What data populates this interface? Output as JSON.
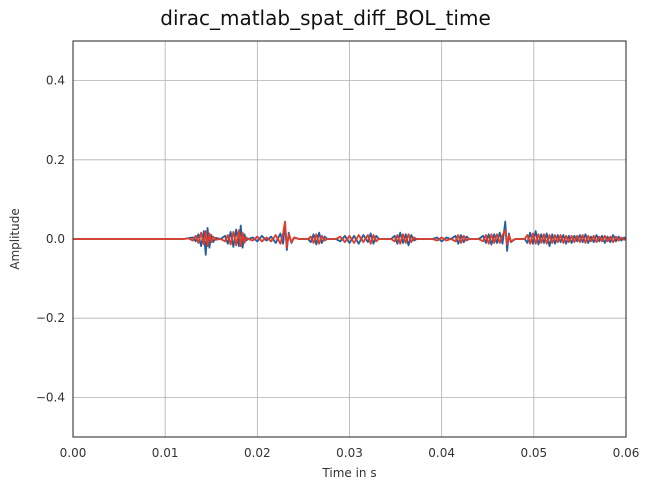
{
  "chart_data": {
    "type": "line",
    "title": "dirac_matlab_spat_diff_BOL_time",
    "xlabel": "Time in s",
    "ylabel": "Amplitude",
    "xlim": [
      0,
      0.06
    ],
    "ylim": [
      -0.5,
      0.5
    ],
    "xticks": [
      0,
      0.01,
      0.02,
      0.03,
      0.04,
      0.05,
      0.06
    ],
    "xtick_labels": [
      "0.00",
      "0.01",
      "0.02",
      "0.03",
      "0.04",
      "0.05",
      "0.06"
    ],
    "yticks": [
      -0.4,
      -0.2,
      0.0,
      0.2,
      0.4
    ],
    "ytick_labels": [
      "−0.4",
      "−0.2",
      "0.0",
      "0.2",
      "0.4"
    ],
    "grid": true,
    "series": [
      {
        "color": "#1f5fa0",
        "points": [
          [
            0.0,
            0.0
          ],
          [
            0.012,
            0.0
          ],
          [
            0.0125,
            0.002
          ],
          [
            0.013,
            0.004
          ],
          [
            0.0133,
            -0.006
          ],
          [
            0.0136,
            0.012
          ],
          [
            0.0139,
            -0.018
          ],
          [
            0.0142,
            0.02
          ],
          [
            0.0144,
            -0.04
          ],
          [
            0.0146,
            0.028
          ],
          [
            0.0148,
            -0.022
          ],
          [
            0.015,
            0.01
          ],
          [
            0.0152,
            -0.008
          ],
          [
            0.0155,
            0.003
          ],
          [
            0.016,
            0.0
          ],
          [
            0.0165,
            0.008
          ],
          [
            0.0168,
            -0.012
          ],
          [
            0.0171,
            0.018
          ],
          [
            0.0174,
            -0.02
          ],
          [
            0.0177,
            0.024
          ],
          [
            0.018,
            -0.018
          ],
          [
            0.0182,
            0.034
          ],
          [
            0.0184,
            -0.022
          ],
          [
            0.0186,
            0.012
          ],
          [
            0.0188,
            -0.004
          ],
          [
            0.019,
            0.0
          ],
          [
            0.0195,
            0.004
          ],
          [
            0.02,
            -0.006
          ],
          [
            0.0205,
            0.008
          ],
          [
            0.021,
            -0.004
          ],
          [
            0.0215,
            0.006
          ],
          [
            0.022,
            -0.01
          ],
          [
            0.0225,
            0.014
          ],
          [
            0.0228,
            -0.012
          ],
          [
            0.023,
            0.04
          ],
          [
            0.0232,
            -0.028
          ],
          [
            0.0234,
            0.016
          ],
          [
            0.0237,
            -0.01
          ],
          [
            0.024,
            0.004
          ],
          [
            0.0245,
            0.0
          ],
          [
            0.0255,
            0.0
          ],
          [
            0.0258,
            -0.008
          ],
          [
            0.0261,
            0.012
          ],
          [
            0.0264,
            -0.014
          ],
          [
            0.0267,
            0.016
          ],
          [
            0.027,
            -0.01
          ],
          [
            0.0273,
            0.006
          ],
          [
            0.0276,
            0.0
          ],
          [
            0.0285,
            0.0
          ],
          [
            0.029,
            -0.006
          ],
          [
            0.0295,
            0.008
          ],
          [
            0.03,
            -0.01
          ],
          [
            0.0305,
            0.008
          ],
          [
            0.031,
            -0.012
          ],
          [
            0.0315,
            0.01
          ],
          [
            0.032,
            -0.008
          ],
          [
            0.0323,
            0.014
          ],
          [
            0.0326,
            -0.012
          ],
          [
            0.0329,
            0.008
          ],
          [
            0.0332,
            0.0
          ],
          [
            0.0345,
            0.0
          ],
          [
            0.0349,
            0.008
          ],
          [
            0.0352,
            -0.012
          ],
          [
            0.0355,
            0.016
          ],
          [
            0.0358,
            -0.01
          ],
          [
            0.0361,
            0.012
          ],
          [
            0.0364,
            -0.016
          ],
          [
            0.0367,
            0.01
          ],
          [
            0.037,
            -0.004
          ],
          [
            0.0373,
            0.0
          ],
          [
            0.039,
            0.0
          ],
          [
            0.0395,
            0.004
          ],
          [
            0.04,
            -0.006
          ],
          [
            0.0405,
            0.004
          ],
          [
            0.041,
            0.0
          ],
          [
            0.0415,
            0.008
          ],
          [
            0.0418,
            -0.012
          ],
          [
            0.0421,
            0.01
          ],
          [
            0.0424,
            -0.008
          ],
          [
            0.0427,
            0.006
          ],
          [
            0.043,
            0.0
          ],
          [
            0.044,
            0.0
          ],
          [
            0.0445,
            0.008
          ],
          [
            0.0448,
            -0.01
          ],
          [
            0.0451,
            0.012
          ],
          [
            0.0454,
            -0.014
          ],
          [
            0.0457,
            0.012
          ],
          [
            0.046,
            -0.01
          ],
          [
            0.0463,
            0.016
          ],
          [
            0.0466,
            -0.012
          ],
          [
            0.0469,
            0.044
          ],
          [
            0.0471,
            -0.03
          ],
          [
            0.0473,
            0.014
          ],
          [
            0.0475,
            -0.008
          ],
          [
            0.048,
            0.0
          ],
          [
            0.049,
            0.0
          ],
          [
            0.0493,
            -0.01
          ],
          [
            0.0496,
            0.016
          ],
          [
            0.0499,
            -0.012
          ],
          [
            0.0502,
            0.02
          ],
          [
            0.0505,
            -0.014
          ],
          [
            0.0508,
            0.012
          ],
          [
            0.0511,
            -0.01
          ],
          [
            0.0514,
            0.014
          ],
          [
            0.0517,
            -0.018
          ],
          [
            0.052,
            0.012
          ],
          [
            0.0523,
            -0.012
          ],
          [
            0.0526,
            0.01
          ],
          [
            0.0529,
            -0.008
          ],
          [
            0.0532,
            0.01
          ],
          [
            0.0535,
            -0.012
          ],
          [
            0.0538,
            0.008
          ],
          [
            0.0541,
            -0.01
          ],
          [
            0.0544,
            0.008
          ],
          [
            0.0547,
            -0.006
          ],
          [
            0.055,
            0.01
          ],
          [
            0.0553,
            -0.008
          ],
          [
            0.0556,
            0.012
          ],
          [
            0.0559,
            -0.01
          ],
          [
            0.0562,
            0.006
          ],
          [
            0.0565,
            -0.008
          ],
          [
            0.0568,
            0.01
          ],
          [
            0.0571,
            -0.006
          ],
          [
            0.0574,
            0.008
          ],
          [
            0.0577,
            -0.01
          ],
          [
            0.058,
            0.006
          ],
          [
            0.0583,
            -0.008
          ],
          [
            0.0586,
            0.01
          ],
          [
            0.0589,
            -0.006
          ],
          [
            0.0592,
            0.006
          ],
          [
            0.0595,
            -0.004
          ],
          [
            0.0598,
            0.004
          ],
          [
            0.06,
            0.0
          ]
        ]
      },
      {
        "color": "#e03c28",
        "points": [
          [
            0.0,
            0.0
          ],
          [
            0.012,
            0.0
          ],
          [
            0.0125,
            0.002
          ],
          [
            0.013,
            -0.004
          ],
          [
            0.0133,
            0.008
          ],
          [
            0.0136,
            -0.01
          ],
          [
            0.0139,
            0.016
          ],
          [
            0.0142,
            -0.014
          ],
          [
            0.0144,
            0.02
          ],
          [
            0.0146,
            -0.018
          ],
          [
            0.0148,
            0.014
          ],
          [
            0.015,
            -0.008
          ],
          [
            0.0152,
            0.006
          ],
          [
            0.0155,
            -0.002
          ],
          [
            0.016,
            0.0
          ],
          [
            0.0165,
            -0.006
          ],
          [
            0.0168,
            0.01
          ],
          [
            0.0171,
            -0.014
          ],
          [
            0.0174,
            0.018
          ],
          [
            0.0177,
            -0.016
          ],
          [
            0.018,
            0.022
          ],
          [
            0.0182,
            -0.018
          ],
          [
            0.0184,
            0.016
          ],
          [
            0.0186,
            -0.01
          ],
          [
            0.0188,
            0.004
          ],
          [
            0.019,
            0.0
          ],
          [
            0.0195,
            -0.004
          ],
          [
            0.02,
            0.006
          ],
          [
            0.0205,
            -0.006
          ],
          [
            0.021,
            0.004
          ],
          [
            0.0215,
            -0.006
          ],
          [
            0.022,
            0.01
          ],
          [
            0.0225,
            -0.012
          ],
          [
            0.0228,
            0.014
          ],
          [
            0.023,
            0.044
          ],
          [
            0.0232,
            -0.022
          ],
          [
            0.0234,
            0.012
          ],
          [
            0.0237,
            -0.008
          ],
          [
            0.024,
            0.004
          ],
          [
            0.0245,
            0.0
          ],
          [
            0.0255,
            0.0
          ],
          [
            0.0258,
            0.006
          ],
          [
            0.0261,
            -0.01
          ],
          [
            0.0264,
            0.012
          ],
          [
            0.0267,
            -0.012
          ],
          [
            0.027,
            0.008
          ],
          [
            0.0273,
            -0.004
          ],
          [
            0.0276,
            0.0
          ],
          [
            0.0285,
            0.0
          ],
          [
            0.029,
            0.006
          ],
          [
            0.0295,
            -0.008
          ],
          [
            0.03,
            0.008
          ],
          [
            0.0305,
            -0.01
          ],
          [
            0.031,
            0.01
          ],
          [
            0.0315,
            -0.008
          ],
          [
            0.032,
            0.01
          ],
          [
            0.0323,
            -0.012
          ],
          [
            0.0326,
            0.01
          ],
          [
            0.0329,
            -0.006
          ],
          [
            0.0332,
            0.0
          ],
          [
            0.0345,
            0.0
          ],
          [
            0.0349,
            -0.006
          ],
          [
            0.0352,
            0.01
          ],
          [
            0.0355,
            -0.012
          ],
          [
            0.0358,
            0.012
          ],
          [
            0.0361,
            -0.01
          ],
          [
            0.0364,
            0.012
          ],
          [
            0.0367,
            -0.008
          ],
          [
            0.037,
            0.004
          ],
          [
            0.0373,
            0.0
          ],
          [
            0.039,
            0.0
          ],
          [
            0.0395,
            -0.004
          ],
          [
            0.04,
            0.004
          ],
          [
            0.0405,
            -0.004
          ],
          [
            0.041,
            0.0
          ],
          [
            0.0415,
            -0.006
          ],
          [
            0.0418,
            0.01
          ],
          [
            0.0421,
            -0.01
          ],
          [
            0.0424,
            0.008
          ],
          [
            0.0427,
            -0.004
          ],
          [
            0.043,
            0.0
          ],
          [
            0.044,
            0.0
          ],
          [
            0.0445,
            -0.006
          ],
          [
            0.0448,
            0.01
          ],
          [
            0.0451,
            -0.012
          ],
          [
            0.0454,
            0.012
          ],
          [
            0.0457,
            -0.01
          ],
          [
            0.046,
            0.012
          ],
          [
            0.0463,
            -0.01
          ],
          [
            0.0466,
            0.01
          ],
          [
            0.0469,
            0.022
          ],
          [
            0.0471,
            -0.014
          ],
          [
            0.0473,
            0.01
          ],
          [
            0.0475,
            -0.006
          ],
          [
            0.048,
            0.0
          ],
          [
            0.049,
            0.0
          ],
          [
            0.0493,
            0.01
          ],
          [
            0.0496,
            -0.012
          ],
          [
            0.0499,
            0.014
          ],
          [
            0.0502,
            -0.012
          ],
          [
            0.0505,
            0.012
          ],
          [
            0.0508,
            -0.01
          ],
          [
            0.0511,
            0.012
          ],
          [
            0.0514,
            -0.012
          ],
          [
            0.0517,
            0.01
          ],
          [
            0.052,
            -0.01
          ],
          [
            0.0523,
            0.01
          ],
          [
            0.0526,
            -0.008
          ],
          [
            0.0529,
            0.01
          ],
          [
            0.0532,
            -0.01
          ],
          [
            0.0535,
            0.008
          ],
          [
            0.0538,
            -0.008
          ],
          [
            0.0541,
            0.008
          ],
          [
            0.0544,
            -0.008
          ],
          [
            0.0547,
            0.008
          ],
          [
            0.055,
            -0.008
          ],
          [
            0.0553,
            0.01
          ],
          [
            0.0556,
            -0.01
          ],
          [
            0.0559,
            0.008
          ],
          [
            0.0562,
            -0.006
          ],
          [
            0.0565,
            0.008
          ],
          [
            0.0568,
            -0.008
          ],
          [
            0.0571,
            0.006
          ],
          [
            0.0574,
            -0.006
          ],
          [
            0.0577,
            0.008
          ],
          [
            0.058,
            -0.006
          ],
          [
            0.0583,
            0.006
          ],
          [
            0.0586,
            -0.008
          ],
          [
            0.0589,
            0.006
          ],
          [
            0.0592,
            -0.004
          ],
          [
            0.0595,
            0.004
          ],
          [
            0.0598,
            -0.002
          ],
          [
            0.06,
            0.0
          ]
        ]
      }
    ]
  }
}
